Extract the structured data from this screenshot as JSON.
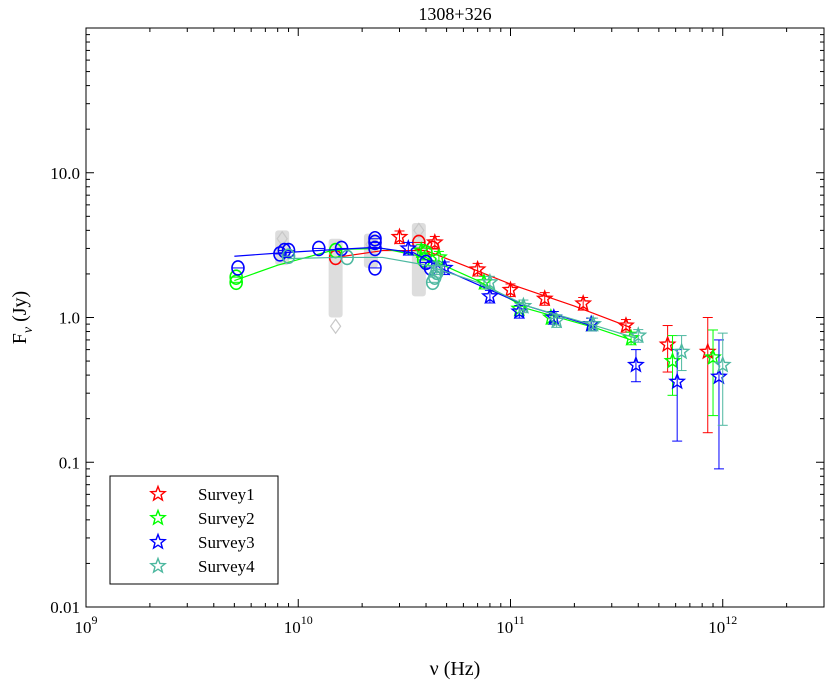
{
  "chart_data": {
    "type": "scatter",
    "title": "1308+326",
    "xlabel": "ν (Hz)",
    "ylabel": "Fν (Jy)",
    "ylabel_main": "F",
    "ylabel_sub": "ν",
    "ylabel_unit": "(Jy)",
    "xscale": "log",
    "yscale": "log",
    "xlim": [
      1000000000.0,
      3000000000000.0
    ],
    "ylim": [
      0.01,
      100
    ],
    "x_ticks": [
      {
        "value": 1000000000.0,
        "base": "10",
        "exp": "9"
      },
      {
        "value": 10000000000.0,
        "base": "10",
        "exp": "10"
      },
      {
        "value": 100000000000.0,
        "base": "10",
        "exp": "11"
      },
      {
        "value": 1000000000000.0,
        "base": "10",
        "exp": "12"
      }
    ],
    "y_ticks": [
      {
        "value": 0.01,
        "label": "0.01"
      },
      {
        "value": 0.1,
        "label": "0.1"
      },
      {
        "value": 1,
        "label": "1.0"
      },
      {
        "value": 10,
        "label": "10.0"
      }
    ],
    "legend_position": "bottom-left",
    "archival_color": "#dddddd",
    "archival": [
      {
        "x": 8400000000.0,
        "lo": 2.3,
        "hi": 4.0
      },
      {
        "x": 15000000000.0,
        "lo": 1.0,
        "hi": 3.5
      },
      {
        "x": 22000000000.0,
        "lo": 2.2,
        "hi": 3.8
      },
      {
        "x": 37000000000.0,
        "lo": 1.4,
        "hi": 4.5
      }
    ],
    "archival_diamonds": [
      {
        "x": 8400000000.0,
        "y": 3.5
      },
      {
        "x": 15000000000.0,
        "y": 0.87
      },
      {
        "x": 22000000000.0,
        "y": 3.2
      },
      {
        "x": 37000000000.0,
        "y": 4.0
      }
    ],
    "series": [
      {
        "name": "Survey1",
        "color": "#ff0000",
        "fit": [
          [
            15000000000.0,
            2.6
          ],
          [
            25000000000.0,
            2.9
          ],
          [
            40000000000.0,
            2.9
          ],
          [
            60000000000.0,
            2.3
          ],
          [
            100000000000.0,
            1.7
          ],
          [
            200000000000.0,
            1.2
          ],
          [
            370000000000.0,
            0.85
          ]
        ],
        "circles": [
          {
            "x": 15000000000.0,
            "y": 2.6
          },
          {
            "x": 37000000000.0,
            "y": 3.3
          },
          {
            "x": 43000000000.0,
            "y": 3.0
          }
        ],
        "stars": [
          {
            "x": 30000000000.0,
            "y": 3.6
          },
          {
            "x": 44000000000.0,
            "y": 3.3
          },
          {
            "x": 70000000000.0,
            "y": 2.15
          },
          {
            "x": 100000000000.0,
            "y": 1.55
          },
          {
            "x": 145000000000.0,
            "y": 1.35
          },
          {
            "x": 220000000000.0,
            "y": 1.25
          },
          {
            "x": 350000000000.0,
            "y": 0.88
          },
          {
            "x": 550000000000.0,
            "y": 0.65,
            "lo": 0.42,
            "hi": 0.88
          },
          {
            "x": 850000000000.0,
            "y": 0.58,
            "lo": 0.16,
            "hi": 1.0
          }
        ]
      },
      {
        "name": "Survey2",
        "color": "#00ff00",
        "fit": [
          [
            5000000000.0,
            1.8
          ],
          [
            8000000000.0,
            2.3
          ],
          [
            15000000000.0,
            2.95
          ],
          [
            25000000000.0,
            3.0
          ],
          [
            40000000000.0,
            2.6
          ],
          [
            70000000000.0,
            1.8
          ],
          [
            120000000000.0,
            1.15
          ],
          [
            250000000000.0,
            0.85
          ],
          [
            370000000000.0,
            0.7
          ]
        ],
        "circles": [
          {
            "x": 5100000000.0,
            "y": 1.75
          },
          {
            "x": 5100000000.0,
            "y": 1.9
          },
          {
            "x": 15000000000.0,
            "y": 2.9
          },
          {
            "x": 39000000000.0,
            "y": 2.5
          },
          {
            "x": 40000000000.0,
            "y": 2.8
          }
        ],
        "stars": [
          {
            "x": 38000000000.0,
            "y": 2.9
          },
          {
            "x": 46000000000.0,
            "y": 2.6
          },
          {
            "x": 75000000000.0,
            "y": 1.75
          },
          {
            "x": 110000000000.0,
            "y": 1.15
          },
          {
            "x": 155000000000.0,
            "y": 1.0
          },
          {
            "x": 240000000000.0,
            "y": 0.9
          },
          {
            "x": 370000000000.0,
            "y": 0.72
          },
          {
            "x": 580000000000.0,
            "y": 0.5,
            "lo": 0.29,
            "hi": 0.75
          },
          {
            "x": 900000000000.0,
            "y": 0.53,
            "lo": 0.21,
            "hi": 0.82
          }
        ]
      },
      {
        "name": "Survey3",
        "color": "#0000ff",
        "fit": [
          [
            5000000000.0,
            2.65
          ],
          [
            8400000000.0,
            2.8
          ],
          [
            15000000000.0,
            2.95
          ],
          [
            23000000000.0,
            3.05
          ],
          [
            35000000000.0,
            2.8
          ],
          [
            50000000000.0,
            2.1
          ],
          [
            80000000000.0,
            1.55
          ],
          [
            120000000000.0,
            1.2
          ],
          [
            240000000000.0,
            0.88
          ]
        ],
        "circles": [
          {
            "x": 5200000000.0,
            "y": 2.2
          },
          {
            "x": 8200000000.0,
            "y": 2.75
          },
          {
            "x": 8600000000.0,
            "y": 2.9
          },
          {
            "x": 9000000000.0,
            "y": 2.9
          },
          {
            "x": 12500000000.0,
            "y": 3.0
          },
          {
            "x": 16000000000.0,
            "y": 3.0
          },
          {
            "x": 23000000000.0,
            "y": 3.5
          },
          {
            "x": 23000000000.0,
            "y": 3.3
          },
          {
            "x": 23000000000.0,
            "y": 3.0
          },
          {
            "x": 23000000000.0,
            "y": 2.2
          },
          {
            "x": 40000000000.0,
            "y": 2.4
          },
          {
            "x": 42000000000.0,
            "y": 2.2
          }
        ],
        "stars": [
          {
            "x": 33000000000.0,
            "y": 3.0
          },
          {
            "x": 49000000000.0,
            "y": 2.2
          },
          {
            "x": 80000000000.0,
            "y": 1.4
          },
          {
            "x": 110000000000.0,
            "y": 1.1
          },
          {
            "x": 160000000000.0,
            "y": 1.0
          },
          {
            "x": 240000000000.0,
            "y": 0.9
          },
          {
            "x": 390000000000.0,
            "y": 0.47,
            "lo": 0.36,
            "hi": 0.6
          },
          {
            "x": 610000000000.0,
            "y": 0.36,
            "lo": 0.14,
            "hi": 0.6
          },
          {
            "x": 960000000000.0,
            "y": 0.39,
            "lo": 0.09,
            "hi": 0.7
          }
        ]
      },
      {
        "name": "Survey4",
        "color": "#4db8a0",
        "fit": [
          [
            8900000000.0,
            2.55
          ],
          [
            15000000000.0,
            2.6
          ],
          [
            25000000000.0,
            2.6
          ],
          [
            40000000000.0,
            2.3
          ],
          [
            70000000000.0,
            1.75
          ],
          [
            120000000000.0,
            1.2
          ],
          [
            250000000000.0,
            0.88
          ],
          [
            390000000000.0,
            0.72
          ]
        ],
        "circles": [
          {
            "x": 9000000000.0,
            "y": 2.65
          },
          {
            "x": 17000000000.0,
            "y": 2.6
          },
          {
            "x": 43000000000.0,
            "y": 1.75
          },
          {
            "x": 44000000000.0,
            "y": 1.9
          },
          {
            "x": 45000000000.0,
            "y": 2.05
          }
        ],
        "stars": [
          {
            "x": 45000000000.0,
            "y": 2.2
          },
          {
            "x": 80000000000.0,
            "y": 1.75
          },
          {
            "x": 115000000000.0,
            "y": 1.2
          },
          {
            "x": 165000000000.0,
            "y": 0.95
          },
          {
            "x": 245000000000.0,
            "y": 0.9
          },
          {
            "x": 400000000000.0,
            "y": 0.75
          },
          {
            "x": 640000000000.0,
            "y": 0.58,
            "lo": 0.43,
            "hi": 0.75
          },
          {
            "x": 1000000000000.0,
            "y": 0.47,
            "lo": 0.18,
            "hi": 0.78
          }
        ]
      }
    ]
  }
}
